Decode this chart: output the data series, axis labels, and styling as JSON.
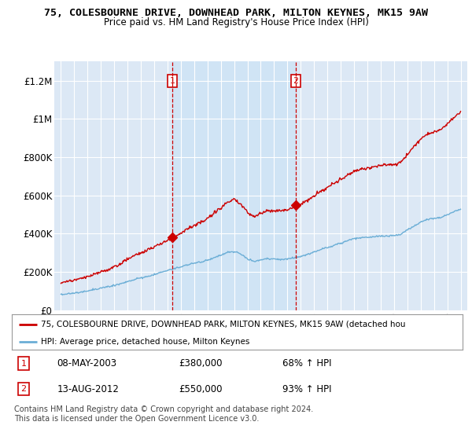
{
  "title": "75, COLESBOURNE DRIVE, DOWNHEAD PARK, MILTON KEYNES, MK15 9AW",
  "subtitle": "Price paid vs. HM Land Registry's House Price Index (HPI)",
  "hpi_color": "#6baed6",
  "price_color": "#cc0000",
  "background_color": "#ffffff",
  "plot_bg_color": "#dce8f5",
  "shade_color": "#ccddf0",
  "sale1_date": 2003.36,
  "sale1_price": 380000,
  "sale2_date": 2012.62,
  "sale2_price": 550000,
  "ylabel_vals": [
    0,
    200000,
    400000,
    600000,
    800000,
    1000000,
    1200000
  ],
  "ylabel_labels": [
    "£0",
    "£200K",
    "£400K",
    "£600K",
    "£800K",
    "£1M",
    "£1.2M"
  ],
  "xlim": [
    1994.5,
    2025.5
  ],
  "ylim": [
    0,
    1300000
  ],
  "legend1": "75, COLESBOURNE DRIVE, DOWNHEAD PARK, MILTON KEYNES, MK15 9AW (detached hou",
  "legend2": "HPI: Average price, detached house, Milton Keynes",
  "note1_label": "1",
  "note1_date": "08-MAY-2003",
  "note1_price": "£380,000",
  "note1_pct": "68% ↑ HPI",
  "note2_label": "2",
  "note2_date": "13-AUG-2012",
  "note2_price": "£550,000",
  "note2_pct": "93% ↑ HPI",
  "footer": "Contains HM Land Registry data © Crown copyright and database right 2024.\nThis data is licensed under the Open Government Licence v3.0."
}
